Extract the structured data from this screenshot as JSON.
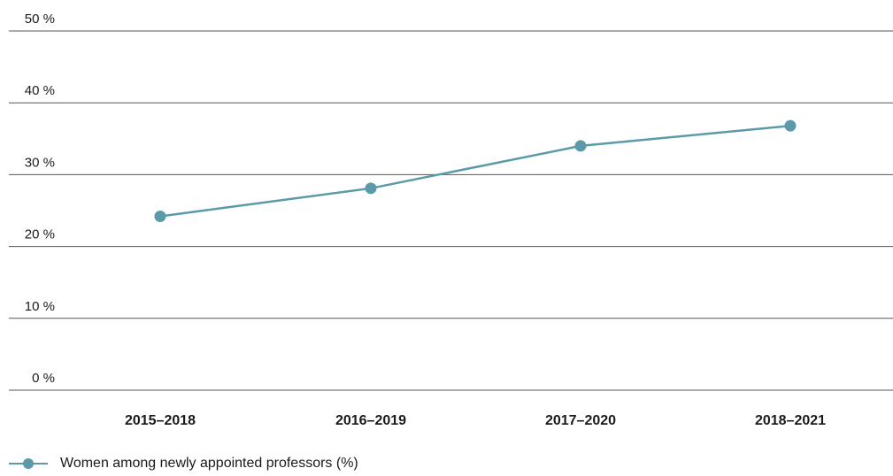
{
  "chart_data": {
    "type": "line",
    "categories": [
      "2015–2018",
      "2016–2019",
      "2017–2020",
      "2018–2021"
    ],
    "series": [
      {
        "name": "Women among newly appointed professors (%)",
        "values": [
          24.2,
          28.1,
          34.0,
          36.8
        ],
        "color": "#5b9aa8"
      }
    ],
    "yticks": [
      0,
      10,
      20,
      30,
      40,
      50
    ],
    "ytick_labels": [
      "0 %",
      "10 %",
      "20 %",
      "30 %",
      "40 %",
      "50 %"
    ],
    "ylim": [
      0,
      50
    ],
    "grid": true,
    "legend_position": "bottom-left",
    "title": "",
    "xlabel": "",
    "ylabel": ""
  }
}
